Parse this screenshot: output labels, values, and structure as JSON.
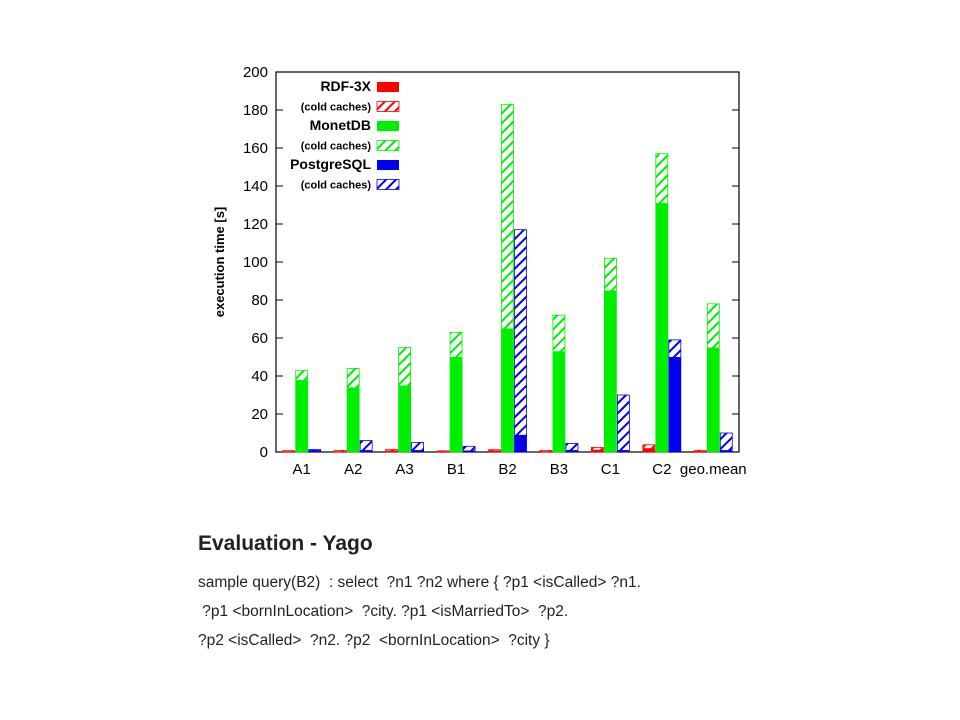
{
  "chart_data": {
    "type": "bar",
    "ylabel": "execution time [s]",
    "xlabel": "",
    "ylim": [
      0,
      200
    ],
    "yticks": [
      0,
      20,
      40,
      60,
      80,
      100,
      120,
      140,
      160,
      180,
      200
    ],
    "categories": [
      "A1",
      "A2",
      "A3",
      "B1",
      "B2",
      "B3",
      "C1",
      "C2",
      "geo.mean"
    ],
    "grid": false,
    "legend_position": "top-left",
    "series": [
      {
        "name": "RDF-3X",
        "color": "#ff0000",
        "warm": [
          0.4,
          0.4,
          0.8,
          0.4,
          0.8,
          0.4,
          1.2,
          2.0,
          0.5
        ],
        "cold": [
          0.7,
          0.8,
          1.3,
          0.6,
          1.2,
          0.8,
          2.4,
          3.8,
          0.9
        ]
      },
      {
        "name": "MonetDB",
        "color": "#00ee00",
        "warm": [
          38,
          34,
          35,
          50,
          65,
          53,
          85,
          131,
          55
        ],
        "cold": [
          43,
          44,
          55,
          63,
          183,
          72,
          102,
          157,
          78
        ]
      },
      {
        "name": "PostgreSQL",
        "color": "#0000ee",
        "warm": [
          1.0,
          1.0,
          1.0,
          0.8,
          9,
          1.0,
          1.0,
          50,
          1.0
        ],
        "cold": [
          1.3,
          6,
          5,
          3,
          117,
          4.5,
          30,
          59,
          10
        ]
      }
    ],
    "legend": [
      {
        "label": "RDF-3X",
        "color": "#ff0000",
        "hatched": false
      },
      {
        "label": "(cold caches)",
        "color": "#ff0000",
        "hatched": true
      },
      {
        "label": "MonetDB",
        "color": "#00ee00",
        "hatched": false
      },
      {
        "label": "(cold caches)",
        "color": "#00ee00",
        "hatched": true
      },
      {
        "label": "PostgreSQL",
        "color": "#0000ee",
        "hatched": false
      },
      {
        "label": "(cold caches)",
        "color": "#0000ee",
        "hatched": true
      }
    ]
  },
  "slide": {
    "title": "Evaluation - Yago",
    "query_lines": [
      "sample query(B2)  : select  ?n1 ?n2 where { ?p1 <isCalled> ?n1.",
      " ?p1 <bornInLocation>  ?city. ?p1 <isMarriedTo>  ?p2.",
      "?p2 <isCalled>  ?n2. ?p2  <bornInLocation>  ?city }"
    ]
  }
}
